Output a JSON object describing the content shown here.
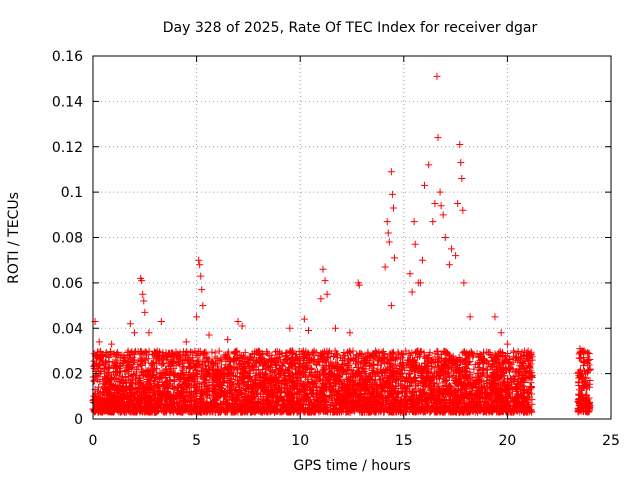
{
  "chart_data": {
    "type": "scatter",
    "title": "Day 328 of 2025, Rate Of TEC Index for receiver dgar",
    "xlabel": "GPS time / hours",
    "ylabel": "ROTI / TECUs",
    "xlim": [
      0,
      25
    ],
    "ylim": [
      0,
      0.16
    ],
    "x_ticks": [
      "0",
      "5",
      "10",
      "15",
      "20",
      "25"
    ],
    "y_ticks": [
      "0",
      "0.02",
      "0.04",
      "0.06",
      "0.08",
      "0.1",
      "0.12",
      "0.14",
      "0.16"
    ],
    "grid": true,
    "legend": "none",
    "series_color": "#ff0000",
    "marker": "plus",
    "coverage": [
      [
        0,
        21.2
      ],
      [
        23.4,
        24.0
      ]
    ],
    "baseline": [
      0.003,
      0.03
    ],
    "notable_points": [
      {
        "x": 0.1,
        "y": 0.043
      },
      {
        "x": 0.3,
        "y": 0.034
      },
      {
        "x": 0.9,
        "y": 0.033
      },
      {
        "x": 1.8,
        "y": 0.042
      },
      {
        "x": 2.0,
        "y": 0.038
      },
      {
        "x": 2.3,
        "y": 0.062
      },
      {
        "x": 2.35,
        "y": 0.061
      },
      {
        "x": 2.4,
        "y": 0.055
      },
      {
        "x": 2.45,
        "y": 0.052
      },
      {
        "x": 2.5,
        "y": 0.047
      },
      {
        "x": 2.7,
        "y": 0.038
      },
      {
        "x": 3.1,
        "y": 0.03
      },
      {
        "x": 3.3,
        "y": 0.043
      },
      {
        "x": 3.9,
        "y": 0.028
      },
      {
        "x": 4.5,
        "y": 0.034
      },
      {
        "x": 5.0,
        "y": 0.045
      },
      {
        "x": 5.1,
        "y": 0.07
      },
      {
        "x": 5.15,
        "y": 0.068
      },
      {
        "x": 5.2,
        "y": 0.063
      },
      {
        "x": 5.25,
        "y": 0.057
      },
      {
        "x": 5.3,
        "y": 0.05
      },
      {
        "x": 5.6,
        "y": 0.037
      },
      {
        "x": 6.5,
        "y": 0.035
      },
      {
        "x": 7.0,
        "y": 0.043
      },
      {
        "x": 7.2,
        "y": 0.041
      },
      {
        "x": 8.0,
        "y": 0.03
      },
      {
        "x": 8.5,
        "y": 0.028
      },
      {
        "x": 9.5,
        "y": 0.04
      },
      {
        "x": 10.2,
        "y": 0.044
      },
      {
        "x": 10.4,
        "y": 0.039
      },
      {
        "x": 11.0,
        "y": 0.053
      },
      {
        "x": 11.1,
        "y": 0.066
      },
      {
        "x": 11.2,
        "y": 0.061
      },
      {
        "x": 11.3,
        "y": 0.055
      },
      {
        "x": 11.7,
        "y": 0.04
      },
      {
        "x": 12.4,
        "y": 0.038
      },
      {
        "x": 12.8,
        "y": 0.06
      },
      {
        "x": 12.85,
        "y": 0.059
      },
      {
        "x": 14.1,
        "y": 0.067
      },
      {
        "x": 14.2,
        "y": 0.087
      },
      {
        "x": 14.25,
        "y": 0.082
      },
      {
        "x": 14.3,
        "y": 0.078
      },
      {
        "x": 14.4,
        "y": 0.109
      },
      {
        "x": 14.45,
        "y": 0.099
      },
      {
        "x": 14.5,
        "y": 0.093
      },
      {
        "x": 14.55,
        "y": 0.071
      },
      {
        "x": 14.4,
        "y": 0.05
      },
      {
        "x": 15.3,
        "y": 0.064
      },
      {
        "x": 15.4,
        "y": 0.056
      },
      {
        "x": 15.5,
        "y": 0.087
      },
      {
        "x": 15.55,
        "y": 0.077
      },
      {
        "x": 15.7,
        "y": 0.06
      },
      {
        "x": 15.8,
        "y": 0.06
      },
      {
        "x": 15.9,
        "y": 0.07
      },
      {
        "x": 16.0,
        "y": 0.103
      },
      {
        "x": 16.2,
        "y": 0.112
      },
      {
        "x": 16.4,
        "y": 0.087
      },
      {
        "x": 16.5,
        "y": 0.095
      },
      {
        "x": 16.6,
        "y": 0.151
      },
      {
        "x": 16.65,
        "y": 0.124
      },
      {
        "x": 16.75,
        "y": 0.1
      },
      {
        "x": 16.8,
        "y": 0.094
      },
      {
        "x": 16.9,
        "y": 0.09
      },
      {
        "x": 17.0,
        "y": 0.08
      },
      {
        "x": 17.2,
        "y": 0.068
      },
      {
        "x": 17.3,
        "y": 0.075
      },
      {
        "x": 17.5,
        "y": 0.072
      },
      {
        "x": 17.6,
        "y": 0.095
      },
      {
        "x": 17.7,
        "y": 0.121
      },
      {
        "x": 17.75,
        "y": 0.113
      },
      {
        "x": 17.8,
        "y": 0.106
      },
      {
        "x": 17.85,
        "y": 0.092
      },
      {
        "x": 17.9,
        "y": 0.06
      },
      {
        "x": 18.2,
        "y": 0.045
      },
      {
        "x": 19.4,
        "y": 0.045
      },
      {
        "x": 19.7,
        "y": 0.038
      },
      {
        "x": 20.0,
        "y": 0.033
      },
      {
        "x": 20.3,
        "y": 0.03
      },
      {
        "x": 21.0,
        "y": 0.03
      },
      {
        "x": 23.5,
        "y": 0.031
      },
      {
        "x": 23.7,
        "y": 0.03
      },
      {
        "x": 23.9,
        "y": 0.029
      }
    ]
  }
}
